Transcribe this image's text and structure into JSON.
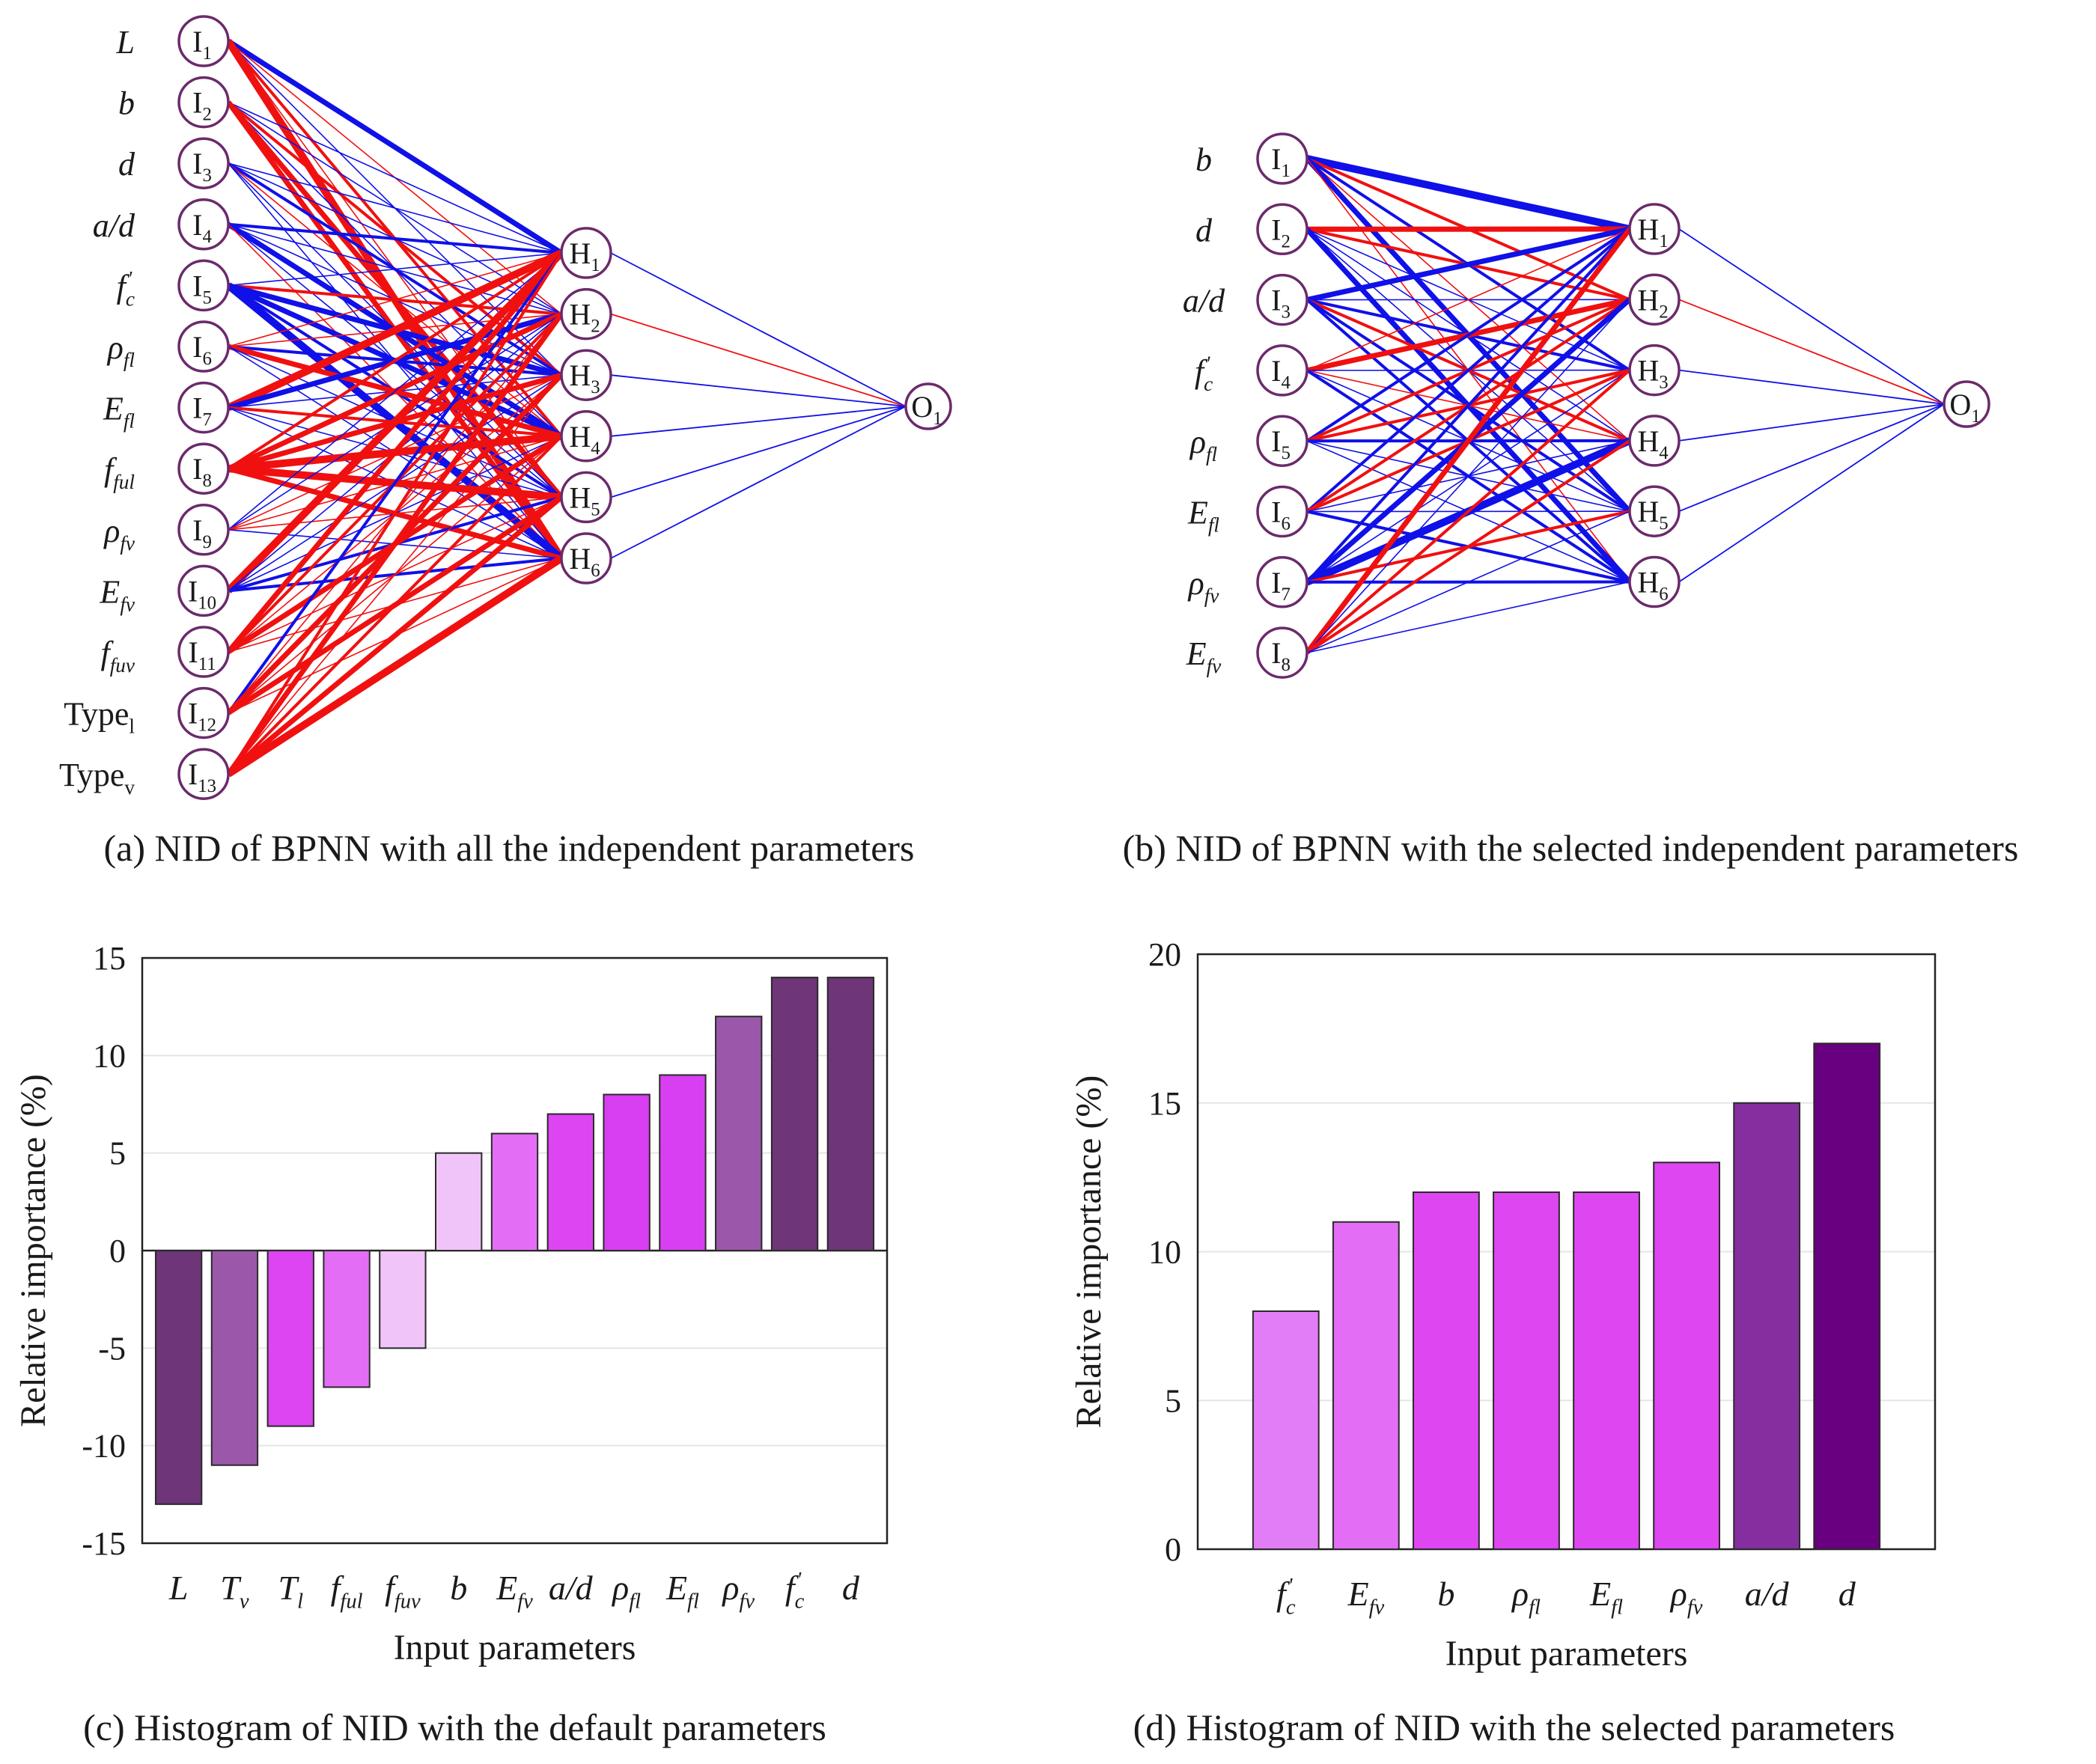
{
  "panel_a": {
    "caption": "(a) NID of BPNN with all the independent parameters",
    "input_labels": [
      {
        "base": "L",
        "sub": ""
      },
      {
        "base": "b",
        "sub": ""
      },
      {
        "base": "d",
        "sub": ""
      },
      {
        "base": "a/d",
        "sub": ""
      },
      {
        "base": "f",
        "sub": "c",
        "prime": "'"
      },
      {
        "base": "ρ",
        "sub": "fl"
      },
      {
        "base": "E",
        "sub": "fl"
      },
      {
        "base": "f",
        "sub": "ful"
      },
      {
        "base": "ρ",
        "sub": "fv"
      },
      {
        "base": "E",
        "sub": "fv"
      },
      {
        "base": "f",
        "sub": "fuv"
      },
      {
        "base": "Type",
        "sub": "l",
        "upright": true
      },
      {
        "base": "Type",
        "sub": "v",
        "upright": true
      }
    ],
    "input_nodes": [
      {
        "base": "I",
        "sub": "1"
      },
      {
        "base": "I",
        "sub": "2"
      },
      {
        "base": "I",
        "sub": "3"
      },
      {
        "base": "I",
        "sub": "4"
      },
      {
        "base": "I",
        "sub": "5"
      },
      {
        "base": "I",
        "sub": "6"
      },
      {
        "base": "I",
        "sub": "7"
      },
      {
        "base": "I",
        "sub": "8"
      },
      {
        "base": "I",
        "sub": "9"
      },
      {
        "base": "I",
        "sub": "10"
      },
      {
        "base": "I",
        "sub": "11"
      },
      {
        "base": "I",
        "sub": "12"
      },
      {
        "base": "I",
        "sub": "13"
      }
    ],
    "hidden_nodes": [
      {
        "base": "H",
        "sub": "1"
      },
      {
        "base": "H",
        "sub": "2"
      },
      {
        "base": "H",
        "sub": "3"
      },
      {
        "base": "H",
        "sub": "4"
      },
      {
        "base": "H",
        "sub": "5"
      },
      {
        "base": "H",
        "sub": "6"
      }
    ],
    "output_nodes": [
      {
        "base": "O",
        "sub": "1"
      }
    ],
    "colors": {
      "positive": "#1010e8",
      "negative": "#f01010",
      "node": "#6b2a6b"
    }
  },
  "panel_b": {
    "caption": "(b) NID of BPNN with the selected independent parameters",
    "input_labels": [
      {
        "base": "b",
        "sub": ""
      },
      {
        "base": "d",
        "sub": ""
      },
      {
        "base": "a/d",
        "sub": ""
      },
      {
        "base": "f",
        "sub": "c",
        "prime": "'"
      },
      {
        "base": "ρ",
        "sub": "fl"
      },
      {
        "base": "E",
        "sub": "fl"
      },
      {
        "base": "ρ",
        "sub": "fv"
      },
      {
        "base": "E",
        "sub": "fv"
      }
    ],
    "input_nodes": [
      {
        "base": "I",
        "sub": "1"
      },
      {
        "base": "I",
        "sub": "2"
      },
      {
        "base": "I",
        "sub": "3"
      },
      {
        "base": "I",
        "sub": "4"
      },
      {
        "base": "I",
        "sub": "5"
      },
      {
        "base": "I",
        "sub": "6"
      },
      {
        "base": "I",
        "sub": "7"
      },
      {
        "base": "I",
        "sub": "8"
      }
    ],
    "hidden_nodes": [
      {
        "base": "H",
        "sub": "1"
      },
      {
        "base": "H",
        "sub": "2"
      },
      {
        "base": "H",
        "sub": "3"
      },
      {
        "base": "H",
        "sub": "4"
      },
      {
        "base": "H",
        "sub": "5"
      },
      {
        "base": "H",
        "sub": "6"
      }
    ],
    "output_nodes": [
      {
        "base": "O",
        "sub": "1"
      }
    ],
    "colors": {
      "positive": "#1010e8",
      "negative": "#f01010",
      "node": "#6b2a6b"
    }
  },
  "chart_data": [
    {
      "type": "bar",
      "title": "(c) Histogram of NID with the default parameters",
      "xlabel": "Input parameters",
      "ylabel": "Relative importance (%)",
      "ylim": [
        -15,
        15
      ],
      "yticks": [
        -15,
        -10,
        -5,
        0,
        5,
        10,
        15
      ],
      "grid": true,
      "categories": [
        {
          "base": "L",
          "sub": ""
        },
        {
          "base": "T",
          "sub": "v"
        },
        {
          "base": "T",
          "sub": "l"
        },
        {
          "base": "f",
          "sub": "ful"
        },
        {
          "base": "f",
          "sub": "fuv"
        },
        {
          "base": "b",
          "sub": ""
        },
        {
          "base": "E",
          "sub": "fv"
        },
        {
          "base": "a/d",
          "sub": ""
        },
        {
          "base": "ρ",
          "sub": "fl"
        },
        {
          "base": "E",
          "sub": "fl"
        },
        {
          "base": "ρ",
          "sub": "fv"
        },
        {
          "base": "f",
          "sub": "c",
          "prime": "'"
        },
        {
          "base": "d",
          "sub": ""
        }
      ],
      "values": [
        -13,
        -11,
        -9,
        -7,
        -5,
        5,
        6,
        7,
        8,
        9,
        12,
        14,
        14
      ],
      "bar_colors": [
        "#6e3578",
        "#9b58aa",
        "#dd45f2",
        "#e36ef5",
        "#f0c4f8",
        "#f0c4f8",
        "#e36ef5",
        "#dd45f2",
        "#d93ff2",
        "#d93ff2",
        "#9b58aa",
        "#6e3578",
        "#6e3578"
      ]
    },
    {
      "type": "bar",
      "title": "(d)  Histogram of NID with the selected parameters",
      "xlabel": "Input parameters",
      "ylabel": "Relative importance (%)",
      "ylim": [
        0,
        20
      ],
      "yticks": [
        0,
        5,
        10,
        15,
        20
      ],
      "grid": true,
      "categories": [
        {
          "base": "f",
          "sub": "c",
          "prime": "'"
        },
        {
          "base": "E",
          "sub": "fv"
        },
        {
          "base": "b",
          "sub": ""
        },
        {
          "base": "ρ",
          "sub": "fl"
        },
        {
          "base": "E",
          "sub": "fl"
        },
        {
          "base": "ρ",
          "sub": "fv"
        },
        {
          "base": "a/d",
          "sub": ""
        },
        {
          "base": "d",
          "sub": ""
        }
      ],
      "values": [
        8,
        11,
        12,
        12,
        12,
        13,
        15,
        17
      ],
      "bar_colors": [
        "#e37cf7",
        "#e36ef5",
        "#de46f2",
        "#de46f2",
        "#de46f2",
        "#de46f2",
        "#862ea0",
        "#680080"
      ]
    }
  ]
}
